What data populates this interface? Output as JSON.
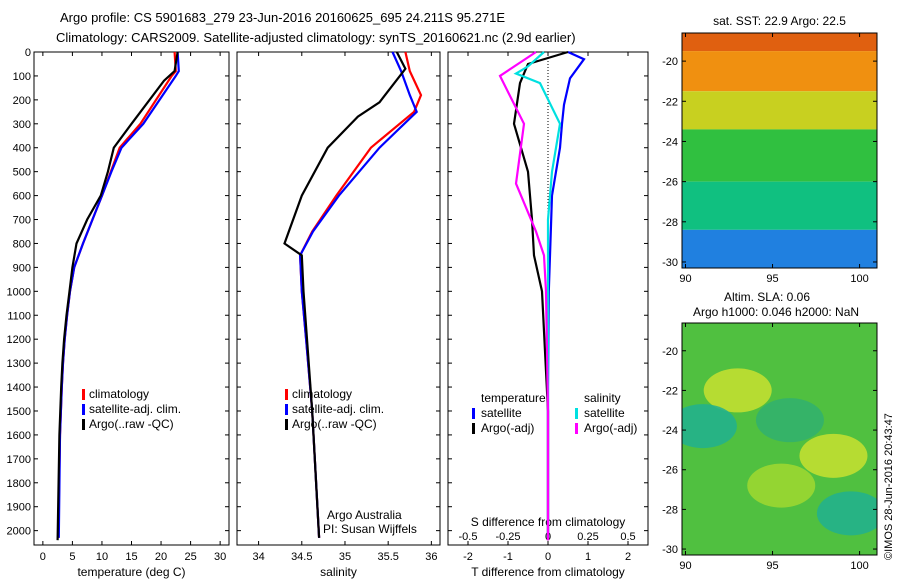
{
  "title_line1": "Argo profile: CS 5901683_279 23-Jun-2016 20160625_695 24.211S 95.271E",
  "title_line2": "Climatology: CARS2009. Satellite-adjusted climatology: synTS_20160621.nc (2.9d earlier)",
  "watermark": "©IMOS 28-Jun-2016 20:43:47",
  "credit_line1": "Argo Australia",
  "credit_line2": "PI: Susan Wijffels",
  "depth_ticks": [
    0,
    100,
    200,
    300,
    400,
    500,
    600,
    700,
    800,
    900,
    1000,
    1100,
    1200,
    1300,
    1400,
    1500,
    1600,
    1700,
    1800,
    1900,
    2000
  ],
  "depth_ylim": [
    2060,
    0
  ],
  "chart_data": [
    {
      "type": "line",
      "xlabel": "temperature (deg C)",
      "xlim": [
        -1.5,
        31.5
      ],
      "xticks": [
        0,
        5,
        10,
        15,
        20,
        25,
        30
      ],
      "legend": {
        "placement": "lower-center",
        "entries": [
          "climatology",
          "satellite-adj. clim.",
          "Argo(..raw -QC)"
        ]
      },
      "series": [
        {
          "name": "climatology",
          "color": "#ff0000",
          "x": [
            22.3,
            22.5,
            21.8,
            16.5,
            13,
            11.5,
            10,
            8.4,
            6.8,
            5.3,
            4.6,
            4.1,
            3.7,
            3.4,
            3.2,
            2.9,
            2.6
          ],
          "y": [
            0,
            80,
            100,
            300,
            400,
            500,
            600,
            700,
            800,
            900,
            1000,
            1100,
            1200,
            1300,
            1400,
            1600,
            2030
          ]
        },
        {
          "name": "satellite-adj. clim.",
          "color": "#0000ff",
          "x": [
            22.8,
            23,
            22.5,
            17,
            13.3,
            11.6,
            10,
            8.4,
            6.8,
            5.3,
            4.6,
            4.1,
            3.7,
            3.4,
            3.2,
            2.9,
            2.7
          ],
          "y": [
            0,
            80,
            100,
            300,
            400,
            500,
            600,
            700,
            800,
            900,
            1000,
            1100,
            1200,
            1300,
            1400,
            1600,
            2030
          ]
        },
        {
          "name": "Argo(..raw -QC)",
          "color": "#000000",
          "x": [
            22.8,
            22.3,
            20.5,
            15,
            12,
            11,
            9.8,
            7.5,
            5.7,
            5,
            4.5,
            4,
            3.6,
            3.3,
            3.1,
            2.8,
            2.5
          ],
          "y": [
            0,
            80,
            120,
            300,
            400,
            500,
            600,
            700,
            800,
            900,
            1000,
            1100,
            1200,
            1300,
            1400,
            1600,
            2040
          ]
        }
      ]
    },
    {
      "type": "line",
      "xlabel": "salinity",
      "xlim": [
        33.75,
        36.1
      ],
      "xticks": [
        34,
        34.5,
        35,
        35.5,
        36
      ],
      "legend": {
        "placement": "lower-center",
        "entries": [
          "climatology",
          "satellite-adj. clim.",
          "Argo(..raw -QC)"
        ]
      },
      "series": [
        {
          "name": "climatology",
          "color": "#ff0000",
          "x": [
            35.7,
            35.75,
            35.88,
            35.8,
            35.3,
            34.9,
            34.62,
            34.48,
            34.5,
            34.55,
            34.62,
            34.7
          ],
          "y": [
            0,
            80,
            180,
            250,
            400,
            600,
            750,
            850,
            1000,
            1200,
            1500,
            2030
          ]
        },
        {
          "name": "satellite-adj. clim.",
          "color": "#0000ff",
          "x": [
            35.55,
            35.65,
            35.75,
            35.83,
            35.4,
            34.93,
            34.63,
            34.48,
            34.5,
            34.55,
            34.62,
            34.7
          ],
          "y": [
            0,
            80,
            180,
            250,
            400,
            600,
            750,
            850,
            1000,
            1200,
            1500,
            2030
          ]
        },
        {
          "name": "Argo(..raw -QC)",
          "color": "#000000",
          "x": [
            35.6,
            35.7,
            35.4,
            35.15,
            34.8,
            34.5,
            34.3,
            34.5,
            34.52,
            34.56,
            34.62,
            34.7
          ],
          "y": [
            0,
            70,
            210,
            270,
            400,
            600,
            800,
            850,
            1000,
            1200,
            1500,
            2030
          ]
        }
      ]
    },
    {
      "type": "line",
      "xlabel": "T difference from climatology",
      "xlabel2": "S difference from climatology",
      "xlim": [
        -2.5,
        2.5
      ],
      "xticks": [
        -2,
        -1,
        0,
        1,
        2
      ],
      "xticks_s": [
        -0.5,
        -0.25,
        0,
        0.25,
        0.5
      ],
      "xticklabels_s": [
        "-0.5",
        "-0.25",
        "0",
        "0.25",
        "0.5"
      ],
      "legend": {
        "placement": "lower-center",
        "groups": [
          "temperature",
          "salinity"
        ],
        "entries": [
          "satellite",
          "Argo(-adj)",
          "satellite",
          "Argo(-adj)"
        ]
      },
      "series": [
        {
          "name": "satellite",
          "group": "temperature",
          "color": "#0000ff",
          "x": [
            0.5,
            0.9,
            0.55,
            0.4,
            0.35,
            0.3,
            0.1,
            0.02,
            0,
            0
          ],
          "y": [
            0,
            30,
            110,
            220,
            300,
            400,
            600,
            1000,
            1400,
            2030
          ]
        },
        {
          "name": "Argo(-adj)",
          "group": "temperature",
          "color": "#000000",
          "x": [
            0.5,
            -0.5,
            -0.7,
            -0.85,
            -0.5,
            -0.4,
            -0.35,
            -0.15,
            0,
            0
          ],
          "y": [
            0,
            50,
            130,
            300,
            500,
            700,
            850,
            1000,
            1500,
            2040
          ]
        },
        {
          "name": "satellite",
          "group": "salinity",
          "color": "#00e0e0",
          "x": [
            -0.1,
            -0.5,
            -0.8,
            -0.2,
            0.3,
            0.1,
            0,
            0,
            0,
            0
          ],
          "y": [
            0,
            60,
            90,
            130,
            300,
            500,
            700,
            1000,
            1400,
            2030
          ]
        },
        {
          "name": "Argo(-adj)",
          "group": "salinity",
          "color": "#ff00ff",
          "x": [
            -0.3,
            -1.2,
            -0.9,
            -0.6,
            -0.8,
            -0.3,
            -0.1,
            -0.05,
            0,
            0
          ],
          "y": [
            0,
            100,
            200,
            300,
            550,
            750,
            850,
            1000,
            1500,
            2040
          ]
        }
      ]
    },
    {
      "type": "heatmap",
      "title": "sat. SST: 22.9  Argo: 22.5",
      "xticks": [
        90,
        95,
        100
      ],
      "yticks": [
        -20,
        -22,
        -24,
        -26,
        -28,
        -30
      ],
      "xlim": [
        89.8,
        101
      ],
      "ylim": [
        -30.3,
        -18.6
      ],
      "bands": [
        {
          "color": "#e06010",
          "ymin": -19.5,
          "ymax": -18.6
        },
        {
          "color": "#f09010",
          "ymin": -21.5,
          "ymax": -19.5
        },
        {
          "color": "#c8d020",
          "ymin": -23.4,
          "ymax": -21.5
        },
        {
          "color": "#30c040",
          "ymin": -26.0,
          "ymax": -23.4
        },
        {
          "color": "#10c080",
          "ymin": -28.4,
          "ymax": -26.0
        },
        {
          "color": "#2080e0",
          "ymin": -30.3,
          "ymax": -28.4
        }
      ]
    },
    {
      "type": "heatmap",
      "title_line1": "Altim. SLA: 0.06",
      "title_line2": "Argo h1000: 0.046  h2000: NaN",
      "xticks": [
        90,
        95,
        100
      ],
      "yticks": [
        -20,
        -22,
        -24,
        -26,
        -28,
        -30
      ],
      "xlim": [
        89.8,
        101
      ],
      "ylim": [
        -30.3,
        -18.6
      ],
      "base_color": "#50c040",
      "patches": [
        {
          "color": "#c8e030",
          "x": 93,
          "y": -22
        },
        {
          "color": "#c8e030",
          "x": 98.5,
          "y": -25.3
        },
        {
          "color": "#20b090",
          "x": 91,
          "y": -23.8
        },
        {
          "color": "#20b090",
          "x": 99.5,
          "y": -28.2
        },
        {
          "color": "#a0d830",
          "x": 95.5,
          "y": -26.8
        },
        {
          "color": "#30b070",
          "x": 96,
          "y": -23.5
        }
      ]
    }
  ]
}
